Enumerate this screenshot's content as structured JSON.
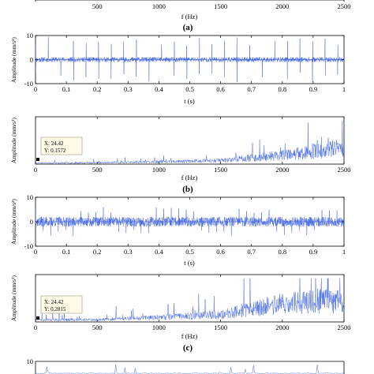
{
  "chart_data": [
    {
      "type": "line",
      "panel": "(a) spectrum",
      "xlabel": "f (Hz)",
      "ylabel": "",
      "xlim": [
        0,
        2500
      ],
      "xticks": [
        500,
        1000,
        1500,
        2000,
        2500
      ],
      "series": [
        {
          "x": [],
          "values": []
        }
      ]
    },
    {
      "type": "line",
      "panel": "(b) time",
      "xlabel": "t (s)",
      "ylabel": "Amplitude (mm/s²)",
      "xlim": [
        0,
        1
      ],
      "ylim": [
        -10,
        10
      ],
      "xticks": [
        0,
        0.1,
        0.2,
        0.3,
        0.4,
        0.5,
        0.6,
        0.7,
        0.8,
        0.9,
        1
      ],
      "yticks": [
        -10,
        0,
        10
      ],
      "impulse_period_s": 0.0408,
      "impulse_peak_mm_s2": 9.5,
      "baseline_noise_mm_s2": 1.0,
      "series": [
        {
          "x": [],
          "values": []
        }
      ]
    },
    {
      "type": "line",
      "panel": "(b) spectrum",
      "xlabel": "f (Hz)",
      "ylabel": "Amplitude (mm/s²)",
      "xlim": [
        0,
        2500
      ],
      "xticks": [
        0,
        500,
        1000,
        1500,
        2000,
        2500
      ],
      "marker": {
        "x": 24.42,
        "y": 0.1572
      },
      "series": [
        {
          "x": [
            0,
            500,
            1000,
            1500,
            2000,
            2500
          ],
          "values": [
            0.157,
            0.2,
            0.3,
            0.5,
            1.2,
            2.2
          ]
        }
      ]
    },
    {
      "type": "line",
      "panel": "(c) time",
      "xlabel": "t (s)",
      "ylabel": "Amplitude (mm/s²)",
      "xlim": [
        0,
        1
      ],
      "ylim": [
        -10,
        10
      ],
      "xticks": [
        0,
        0.1,
        0.2,
        0.3,
        0.4,
        0.5,
        0.6,
        0.7,
        0.8,
        0.9,
        1
      ],
      "yticks": [
        -10,
        0,
        10
      ],
      "impulse_period_s": 0.02442,
      "impulse_peak_mm_s2": 6.0,
      "baseline_noise_mm_s2": 2.0,
      "series": [
        {
          "x": [],
          "values": []
        }
      ]
    },
    {
      "type": "line",
      "panel": "(c) spectrum",
      "xlabel": "f (Hz)",
      "ylabel": "Amplitude (mm/s²)",
      "xlim": [
        0,
        2500
      ],
      "xticks": [
        0,
        500,
        1000,
        1500,
        2000,
        2500
      ],
      "marker": {
        "x": 24.42,
        "y": 0.2815
      },
      "series": [
        {
          "x": [
            0,
            500,
            1000,
            1500,
            2000,
            2500
          ],
          "values": [
            0.28,
            0.3,
            0.6,
            1.0,
            2.5,
            3.0
          ]
        }
      ]
    },
    {
      "type": "line",
      "panel": "(d) time",
      "xlabel": "",
      "ylabel": "",
      "yticks": [
        10
      ],
      "series": [
        {
          "x": [],
          "values": []
        }
      ]
    }
  ],
  "labels": {
    "panel_a": "(a)",
    "panel_b": "(b)",
    "panel_c": "(c)",
    "freq_axis": "f (Hz)",
    "time_axis": "t (s)",
    "amp_axis": "Amplitude (mm/s²)",
    "amp_axis_short": "Amplitude (mm/s²)",
    "tip_b_x": "X: 24.42",
    "tip_b_y": "Y: 0.1572",
    "tip_c_x": "X: 24.42",
    "tip_c_y": "Y: 0.2815"
  },
  "colors": {
    "signal": "#3a5fe0",
    "axes": "#000000",
    "tooltip_bg": "#fffbe6"
  }
}
